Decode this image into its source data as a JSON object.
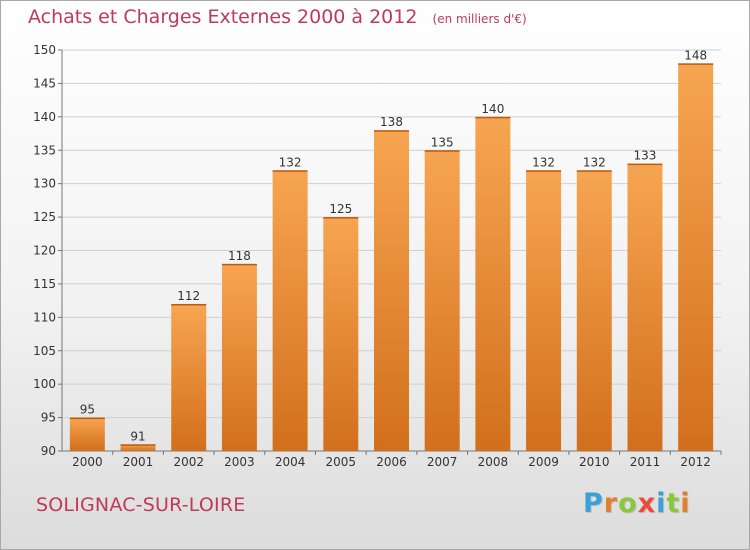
{
  "title": {
    "main": "Achats et Charges Externes 2000 à 2012",
    "unit": "(en milliers d'€)"
  },
  "town": "SOLIGNAC-SUR-LOIRE",
  "logo": {
    "text": "Proxiti",
    "letters": [
      {
        "char": "P",
        "color": "#3aa0d8"
      },
      {
        "char": "r",
        "color": "#e07f2d"
      },
      {
        "char": "o",
        "color": "#8cc63f"
      },
      {
        "char": "x",
        "color": "#e94b3c"
      },
      {
        "char": "i",
        "color": "#3aa0d8"
      },
      {
        "char": "t",
        "color": "#8cc63f"
      },
      {
        "char": "i",
        "color": "#e07f2d"
      }
    ]
  },
  "colors": {
    "accent": "#c0395a",
    "bar_light": "#f7a552",
    "bar_dark": "#d26f1c",
    "grid": "#d0d0d0",
    "axis_text": "#333333"
  },
  "chart_data": {
    "type": "bar",
    "title": "Achats et Charges Externes 2000 à 2012",
    "subtitle": "(en milliers d'€)",
    "categories": [
      "2000",
      "2001",
      "2002",
      "2003",
      "2004",
      "2005",
      "2006",
      "2007",
      "2008",
      "2009",
      "2010",
      "2011",
      "2012"
    ],
    "values": [
      95,
      91,
      112,
      118,
      132,
      125,
      138,
      135,
      140,
      132,
      132,
      133,
      148
    ],
    "ylim": [
      90,
      150
    ],
    "yticks": [
      90,
      95,
      100,
      105,
      110,
      115,
      120,
      125,
      130,
      135,
      140,
      145,
      150
    ],
    "grid": true,
    "legend": "none",
    "data_labels": true
  }
}
